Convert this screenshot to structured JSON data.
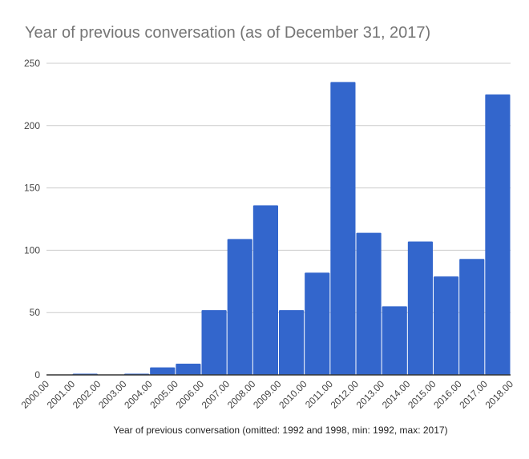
{
  "chart_data": {
    "type": "bar",
    "title": "Year of previous conversation (as of December 31, 2017)",
    "xlabel": "Year of previous conversation (omitted: 1992 and 1998, min: 1992, max: 2017)",
    "ylabel": "",
    "bin_edges": [
      "2000.00",
      "2001.00",
      "2002.00",
      "2003.00",
      "2004.00",
      "2005.00",
      "2006.00",
      "2007.00",
      "2008.00",
      "2009.00",
      "2010.00",
      "2011.00",
      "2012.00",
      "2013.00",
      "2014.00",
      "2015.00",
      "2016.00",
      "2017.00",
      "2018.00"
    ],
    "values": [
      0,
      1,
      0,
      1,
      6,
      9,
      52,
      109,
      136,
      52,
      82,
      235,
      114,
      55,
      107,
      79,
      93,
      225
    ],
    "yticks": [
      0,
      50,
      100,
      150,
      200,
      250
    ],
    "ylim": [
      0,
      250
    ],
    "grid": true,
    "bar_color": "#3366cc"
  }
}
